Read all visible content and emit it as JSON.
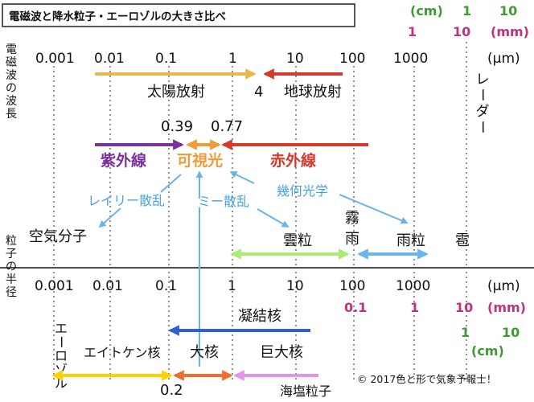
{
  "title": "電磁波と降水粒子・エーロゾルの大きさ比べ",
  "top_scale": {
    "ticks": [
      "0.001",
      "0.01",
      "0.1",
      "1",
      "10",
      "100",
      "1000"
    ],
    "unit": "(μm)",
    "cm_label": "(cm)",
    "cm_values": [
      "1",
      "10"
    ],
    "mm_values": [
      "1",
      "10"
    ],
    "mm_label": "(mm)"
  },
  "section_labels": {
    "wavelength": "電磁波の波長",
    "particle": "粒子の半径"
  },
  "radiation": {
    "solar": "太陽放射",
    "boundary": "4",
    "terrestrial": "地球放射",
    "radar": "レーダー",
    "vis_min": "0.39",
    "vis_max": "0.77",
    "uv": "紫外線",
    "visible": "可視光",
    "ir": "赤外線"
  },
  "scattering": {
    "rayleigh": "レイリー散乱",
    "mie": "ミー散乱",
    "geometric": "幾何光学"
  },
  "particles": {
    "air": "空気分子",
    "cloud": "雲粒",
    "fog": "霧",
    "drizzle": "雨",
    "rain": "雨粒",
    "hail": "雹"
  },
  "bottom_scale": {
    "ticks": [
      "0.001",
      "0.01",
      "0.1",
      "1",
      "10",
      "100",
      "1000"
    ],
    "unit": "(μm)",
    "mm_values": [
      "0.1",
      "1",
      "10"
    ],
    "mm_label": "(mm)",
    "cm_values": [
      "1",
      "10"
    ],
    "cm_label": "(cm)"
  },
  "aerosol": {
    "label": "エーロゾル",
    "condensation": "凝結核",
    "aitken": "エイトケン核",
    "large": "大核",
    "giant": "巨大核",
    "boundary": "0.2",
    "seasalt": "海塩粒子"
  },
  "copyright": "© 2017色と形で気象予報士！",
  "colors": {
    "solar": "#e8b84a",
    "terrestrial": "#d33a2c",
    "uv": "#7b2fa0",
    "visible": "#ef9b3a",
    "scatter": "#68b3ec",
    "cloud": "#a8ec72",
    "rain": "#6cb4ee",
    "condensation": "#2f5fd8",
    "aitken": "#ffd000",
    "large": "#ef6d2e",
    "giant": "#e394e8",
    "cm": "#3e9a32",
    "mm": "#c0327e"
  }
}
